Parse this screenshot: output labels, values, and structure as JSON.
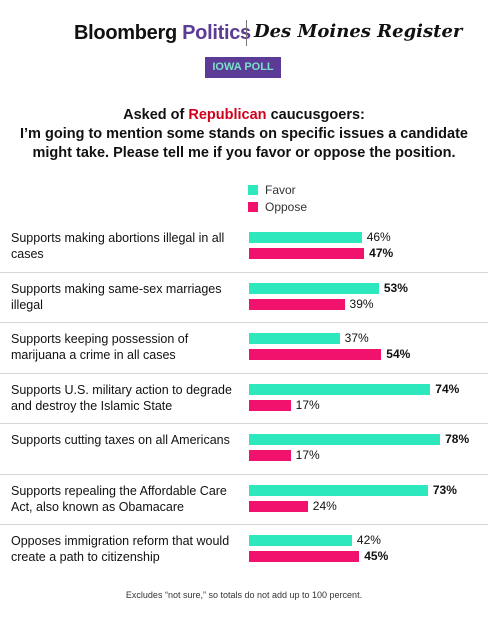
{
  "header": {
    "bloomberg": "Bloomberg",
    "politics": "Politics",
    "dmr": "Des Moines Register",
    "badge": "IOWA POLL"
  },
  "question": {
    "line1_prefix": "Asked of ",
    "line1_highlight": "Republican",
    "line1_suffix": " caucusgoers:",
    "line2": "I’m going to mention some stands on specific issues a candidate might take. Please tell me if you favor or oppose the position."
  },
  "colors": {
    "favor": "#2ee8bd",
    "oppose": "#f0126c",
    "politics": "#5b3b95",
    "badge_bg": "#5b3b95",
    "highlight": "#d0021b"
  },
  "chart_data": {
    "type": "bar",
    "orientation": "horizontal",
    "categories": [
      "Supports making abortions illegal in all cases",
      "Supports making same-sex marriages illegal",
      "Supports keeping possession of marijuana a crime in all cases",
      "Supports U.S. military action to degrade and destroy the Islamic State",
      "Supports cutting taxes on all Americans",
      "Supports repealing the Affordable Care Act, also known as Obamacare",
      "Opposes immigration reform that would create a path to citizenship"
    ],
    "series": [
      {
        "name": "Favor",
        "values": [
          46,
          53,
          37,
          74,
          78,
          73,
          42
        ]
      },
      {
        "name": "Oppose",
        "values": [
          47,
          39,
          54,
          17,
          17,
          24,
          45
        ]
      }
    ],
    "value_suffix": "%",
    "xlim": [
      0,
      100
    ],
    "legend_position": "top"
  },
  "footnote": "Excludes “not sure,” so totals do not add up to 100 percent."
}
